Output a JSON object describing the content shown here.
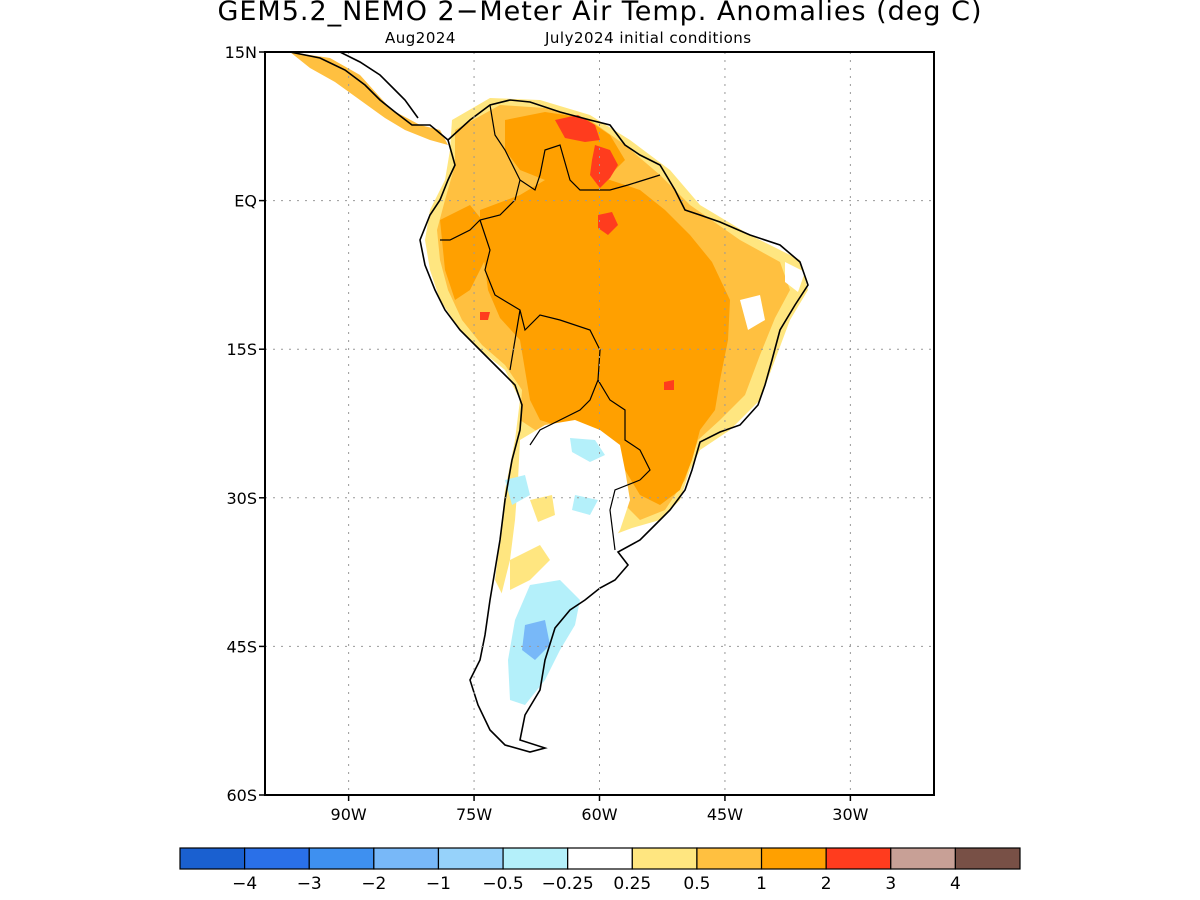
{
  "title": "GEM5.2_NEMO 2−Meter Air Temp. Anomalies (deg C)",
  "subtitle_left": "Aug2024",
  "subtitle_right": "July2024 initial conditions",
  "map": {
    "region": "South America",
    "lon_range": [
      -100,
      -20
    ],
    "lat_range": [
      -60,
      15
    ],
    "grid_lines": "dotted",
    "lat_ticks": [
      {
        "value": 15,
        "label": "15N"
      },
      {
        "value": 0,
        "label": "EQ"
      },
      {
        "value": -15,
        "label": "15S"
      },
      {
        "value": -30,
        "label": "30S"
      },
      {
        "value": -45,
        "label": "45S"
      },
      {
        "value": -60,
        "label": "60S"
      }
    ],
    "lon_ticks": [
      {
        "value": -90,
        "label": "90W"
      },
      {
        "value": -75,
        "label": "75W"
      },
      {
        "value": -60,
        "label": "60W"
      },
      {
        "value": -45,
        "label": "45W"
      },
      {
        "value": -30,
        "label": "30W"
      }
    ]
  },
  "colorbar": {
    "colors": [
      "#1a60d0",
      "#2a70e8",
      "#3e90f0",
      "#78b8f8",
      "#96d2fa",
      "#b4f0fa",
      "#ffffff",
      "#ffe680",
      "#ffc040",
      "#ffa000",
      "#ff3c1e",
      "#c8a096",
      "#785046"
    ],
    "labels": [
      "−4",
      "−3",
      "−2",
      "−1",
      "−0.5",
      "−0.25",
      "0.25",
      "0.5",
      "1",
      "2",
      "3",
      "4"
    ]
  }
}
